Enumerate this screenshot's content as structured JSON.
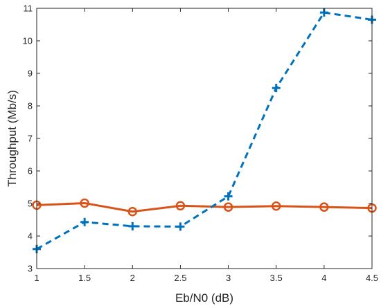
{
  "chart_data": {
    "type": "line",
    "title": "",
    "xlabel": "Eb/N0 (dB)",
    "ylabel": "Throughput (Mb/s)",
    "xlim": [
      1,
      4.5
    ],
    "ylim": [
      3,
      11
    ],
    "xticks": [
      1,
      1.5,
      2,
      2.5,
      3,
      3.5,
      4,
      4.5
    ],
    "xtick_labels": [
      "1",
      "1.5",
      "2",
      "2.5",
      "3",
      "3.5",
      "4",
      "4.5"
    ],
    "yticks": [
      3,
      4,
      5,
      6,
      7,
      8,
      9,
      10,
      11
    ],
    "ytick_labels": [
      "3",
      "4",
      "5",
      "6",
      "7",
      "8",
      "9",
      "10",
      "11"
    ],
    "grid": false,
    "legend": "none",
    "x": [
      1,
      1.5,
      2,
      2.5,
      3,
      3.5,
      4,
      4.5
    ],
    "series": [
      {
        "values": [
          4.95,
          5.01,
          4.75,
          4.93,
          4.89,
          4.92,
          4.89,
          4.86
        ],
        "color": "#D95319",
        "line_style": "solid",
        "marker": "circle"
      },
      {
        "values": [
          3.6,
          4.43,
          4.3,
          4.29,
          5.22,
          8.55,
          10.87,
          10.65
        ],
        "color": "#0072BD",
        "line_style": "dashed",
        "marker": "plus"
      }
    ]
  }
}
